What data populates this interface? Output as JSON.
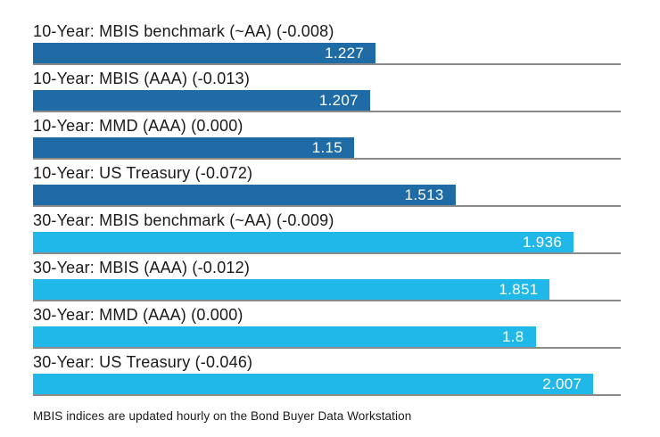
{
  "chart_data": {
    "type": "bar",
    "orientation": "horizontal",
    "title": "",
    "xlabel": "",
    "ylabel": "",
    "xlim": [
      0,
      2.105
    ],
    "grid": false,
    "legend": "none",
    "colors": {
      "ten_year": "#1e6ba5",
      "thirty_year": "#1fb8e8",
      "baseline_rule": "#8a8a8a",
      "label_text": "#1a1a1a",
      "value_text": "#ffffff"
    },
    "bars": [
      {
        "label": "10-Year: MBIS benchmark (~AA) (-0.008)",
        "value": 1.227,
        "display_value": "1.227",
        "group": "ten_year"
      },
      {
        "label": "10-Year: MBIS (AAA) (-0.013)",
        "value": 1.207,
        "display_value": "1.207",
        "group": "ten_year"
      },
      {
        "label": "10-Year: MMD (AAA) (0.000)",
        "value": 1.15,
        "display_value": "1.15",
        "group": "ten_year"
      },
      {
        "label": "10-Year: US Treasury (-0.072)",
        "value": 1.513,
        "display_value": "1.513",
        "group": "ten_year"
      },
      {
        "label": "30-Year: MBIS benchmark (~AA) (-0.009)",
        "value": 1.936,
        "display_value": "1.936",
        "group": "thirty_year"
      },
      {
        "label": "30-Year: MBIS (AAA) (-0.012)",
        "value": 1.851,
        "display_value": "1.851",
        "group": "thirty_year"
      },
      {
        "label": "30-Year: MMD (AAA) (0.000)",
        "value": 1.8,
        "display_value": "1.8",
        "group": "thirty_year"
      },
      {
        "label": "30-Year: US Treasury (-0.046)",
        "value": 2.007,
        "display_value": "2.007",
        "group": "thirty_year"
      }
    ],
    "footnote": "MBIS indices are updated hourly on the Bond Buyer Data Workstation"
  }
}
